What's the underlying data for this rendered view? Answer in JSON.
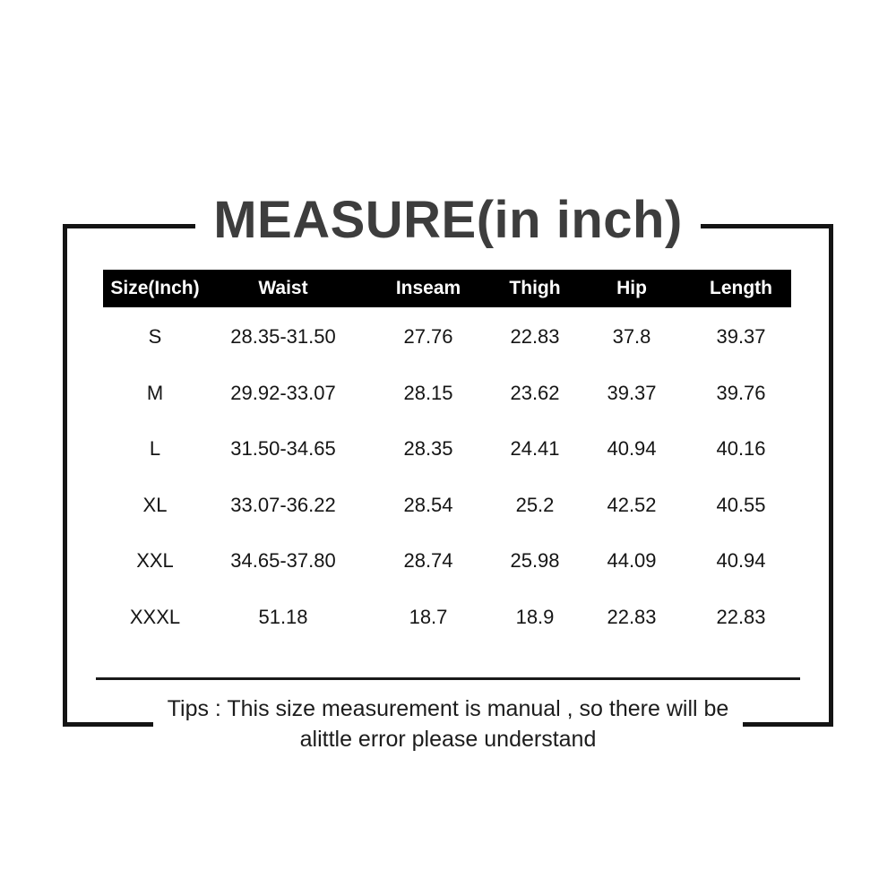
{
  "title": "MEASURE(in inch)",
  "chart_data": {
    "type": "table",
    "title": "MEASURE(in inch)",
    "unit": "inch",
    "columns": [
      "Size(Inch)",
      "Waist",
      "Inseam",
      "Thigh",
      "Hip",
      "Length"
    ],
    "rows": [
      [
        "S",
        "28.35-31.50",
        "27.76",
        "22.83",
        "37.8",
        "39.37"
      ],
      [
        "M",
        "29.92-33.07",
        "28.15",
        "23.62",
        "39.37",
        "39.76"
      ],
      [
        "L",
        "31.50-34.65",
        "28.35",
        "24.41",
        "40.94",
        "40.16"
      ],
      [
        "XL",
        "33.07-36.22",
        "28.54",
        "25.2",
        "42.52",
        "40.55"
      ],
      [
        "XXL",
        "34.65-37.80",
        "28.74",
        "25.98",
        "44.09",
        "40.94"
      ],
      [
        "XXXL",
        "51.18",
        "18.7",
        "18.9",
        "22.83",
        "22.83"
      ]
    ],
    "header_bg": "#000000",
    "header_text_color": "#ffffff",
    "body_text_color": "#151515"
  },
  "tips": {
    "line1": "Tips : This size measurement is manual , so there will be",
    "line2": "alittle error please understand"
  },
  "colors": {
    "background": "#ffffff",
    "frame_border": "#141414",
    "title_text": "#3d3d3d",
    "divider_line": "#1a1a1a",
    "tips_text": "#1c1c1c"
  }
}
